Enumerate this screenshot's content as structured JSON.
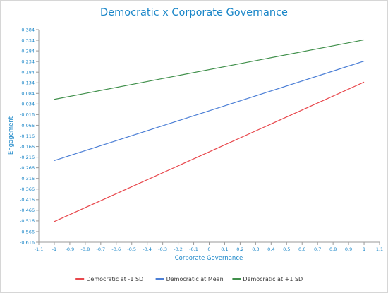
{
  "chart_data": {
    "type": "line",
    "title": "Democratic x Corporate Governance",
    "xlabel": "Corporate Governance",
    "ylabel": "Engagement",
    "xlim": [
      -1.1,
      1.1
    ],
    "ylim": [
      -0.616,
      0.384
    ],
    "x_ticks": [
      "-1.1",
      "-1",
      "-0.9",
      "-0.8",
      "-0.7",
      "-0.6",
      "-0.5",
      "-0.4",
      "-0.3",
      "-0.2",
      "-0.1",
      "0",
      "0.1",
      "0.2",
      "0.3",
      "0.4",
      "0.5",
      "0.6",
      "0.7",
      "0.8",
      "0.9",
      "1",
      "1.1"
    ],
    "y_ticks": [
      "0.384",
      "0.334",
      "0.284",
      "0.234",
      "0.184",
      "0.134",
      "0.084",
      "0.034",
      "-0.016",
      "-0.066",
      "-0.116",
      "-0.166",
      "-0.216",
      "-0.266",
      "-0.316",
      "-0.366",
      "-0.416",
      "-0.466",
      "-0.516",
      "-0.566",
      "-0.616"
    ],
    "series": [
      {
        "name": "Democratic at -1 SD",
        "color": "#e8474c",
        "x": [
          -1,
          1
        ],
        "y": [
          -0.519,
          0.137
        ]
      },
      {
        "name": "Democratic at Mean",
        "color": "#4c7fd6",
        "x": [
          -1,
          1
        ],
        "y": [
          -0.232,
          0.236
        ]
      },
      {
        "name": "Democratic at +1 SD",
        "color": "#3f8f4a",
        "x": [
          -1,
          1
        ],
        "y": [
          0.056,
          0.336
        ]
      }
    ],
    "grid": false,
    "legend": "bottom"
  }
}
